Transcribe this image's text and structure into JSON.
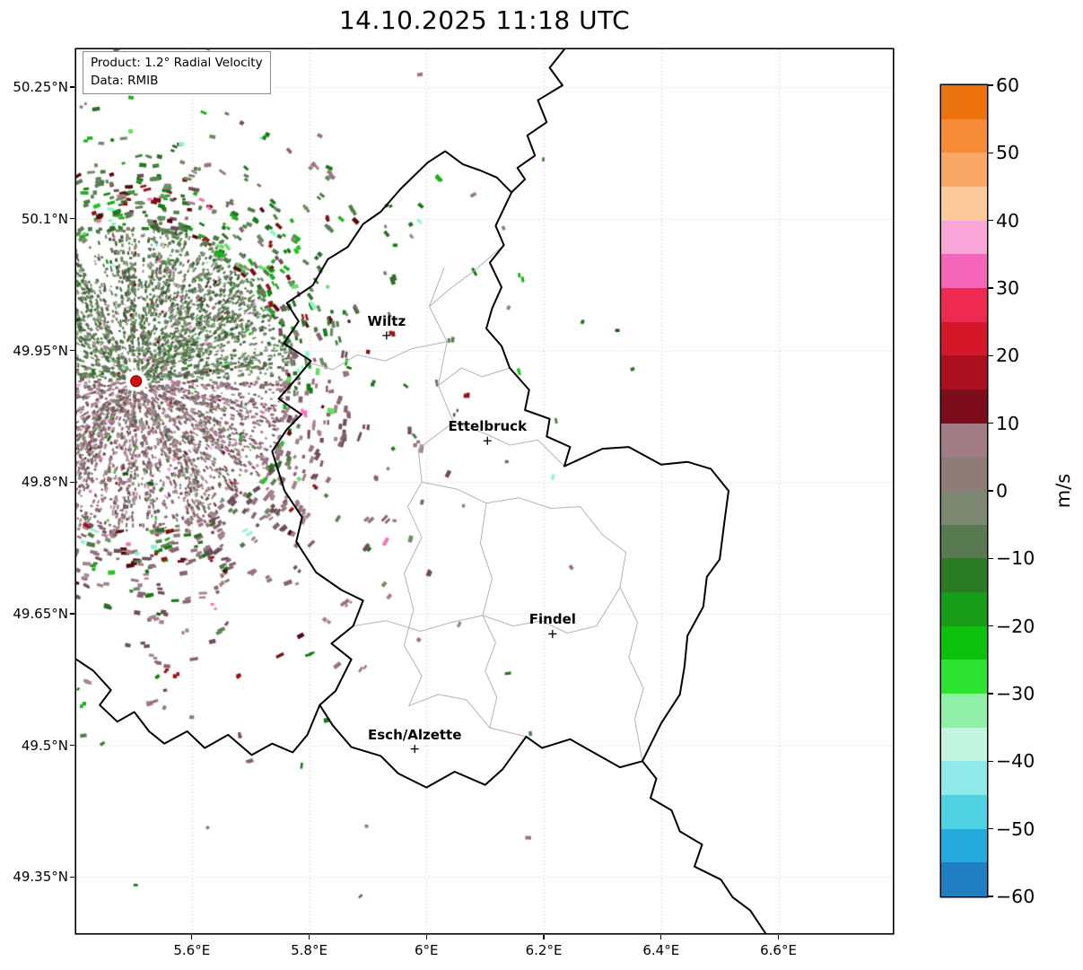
{
  "title": "14.10.2025 11:18 UTC",
  "legend": {
    "product": "Product: 1.2° Radial Velocity",
    "source": "Data: RMIB"
  },
  "axes": {
    "lon_min": 5.403,
    "lon_max": 6.795,
    "lat_min": 49.286,
    "lat_max": 50.293,
    "x_ticks": [
      {
        "value": 5.6,
        "label": "5.6°E"
      },
      {
        "value": 5.8,
        "label": "5.8°E"
      },
      {
        "value": 6.0,
        "label": "6°E"
      },
      {
        "value": 6.2,
        "label": "6.2°E"
      },
      {
        "value": 6.4,
        "label": "6.4°E"
      },
      {
        "value": 6.6,
        "label": "6.6°E"
      }
    ],
    "y_ticks": [
      {
        "value": 50.25,
        "label": "50.25°N"
      },
      {
        "value": 50.1,
        "label": "50.1°N"
      },
      {
        "value": 49.95,
        "label": "49.95°N"
      },
      {
        "value": 49.8,
        "label": "49.8°N"
      },
      {
        "value": 49.65,
        "label": "49.65°N"
      },
      {
        "value": 49.5,
        "label": "49.5°N"
      },
      {
        "value": 49.35,
        "label": "49.35°N"
      }
    ]
  },
  "colorbar": {
    "label": "m/s",
    "vmin": -60,
    "vmax": 60,
    "ticks": [
      {
        "value": 60,
        "label": "60"
      },
      {
        "value": 50,
        "label": "50"
      },
      {
        "value": 40,
        "label": "40"
      },
      {
        "value": 30,
        "label": "30"
      },
      {
        "value": 20,
        "label": "20"
      },
      {
        "value": 10,
        "label": "10"
      },
      {
        "value": 0,
        "label": "0"
      },
      {
        "value": -10,
        "label": "−10"
      },
      {
        "value": -20,
        "label": "−20"
      },
      {
        "value": -30,
        "label": "−30"
      },
      {
        "value": -40,
        "label": "−40"
      },
      {
        "value": -50,
        "label": "−50"
      },
      {
        "value": -60,
        "label": "−60"
      }
    ],
    "bands": [
      {
        "from": 60,
        "to": 55,
        "color": "#ed730f"
      },
      {
        "from": 55,
        "to": 50,
        "color": "#f68b38"
      },
      {
        "from": 50,
        "to": 45,
        "color": "#f9a868"
      },
      {
        "from": 45,
        "to": 40,
        "color": "#fcc99d"
      },
      {
        "from": 40,
        "to": 35,
        "color": "#f9a6d8"
      },
      {
        "from": 35,
        "to": 30,
        "color": "#f566ba"
      },
      {
        "from": 30,
        "to": 25,
        "color": "#ee2a50"
      },
      {
        "from": 25,
        "to": 20,
        "color": "#d4182a"
      },
      {
        "from": 20,
        "to": 15,
        "color": "#aa101f"
      },
      {
        "from": 15,
        "to": 10,
        "color": "#7e0d1b"
      },
      {
        "from": 10,
        "to": 5,
        "color": "#a17b85"
      },
      {
        "from": 5,
        "to": 0,
        "color": "#8e7a77"
      },
      {
        "from": 0,
        "to": -5,
        "color": "#7c8871"
      },
      {
        "from": -5,
        "to": -10,
        "color": "#597a50"
      },
      {
        "from": -10,
        "to": -15,
        "color": "#2a7a26"
      },
      {
        "from": -15,
        "to": -20,
        "color": "#169c16"
      },
      {
        "from": -20,
        "to": -25,
        "color": "#0cc20c"
      },
      {
        "from": -25,
        "to": -30,
        "color": "#2ee232"
      },
      {
        "from": -30,
        "to": -35,
        "color": "#90f0a8"
      },
      {
        "from": -35,
        "to": -40,
        "color": "#c4f4e2"
      },
      {
        "from": -40,
        "to": -45,
        "color": "#8fe8ea"
      },
      {
        "from": -45,
        "to": -50,
        "color": "#4fd3e3"
      },
      {
        "from": -50,
        "to": -55,
        "color": "#24aadc"
      },
      {
        "from": -55,
        "to": -60,
        "color": "#1f7fc2"
      }
    ]
  },
  "cities": [
    {
      "name": "Wiltz",
      "lon": 5.932,
      "lat": 49.967
    },
    {
      "name": "Ettelbruck",
      "lon": 6.104,
      "lat": 49.847
    },
    {
      "name": "Findel",
      "lon": 6.215,
      "lat": 49.627
    },
    {
      "name": "Esch/Alzette",
      "lon": 5.98,
      "lat": 49.496
    }
  ],
  "radar": {
    "lon": 5.505,
    "lat": 49.915,
    "color": "#d21010",
    "edge": "#8c0000"
  },
  "map": {
    "grid_color": "#c4c4c4",
    "country_color": "#000000",
    "canton_color": "#b3b3b3",
    "country_borders": [
      [
        [
          6.235,
          50.293
        ],
        [
          6.21,
          50.272
        ],
        [
          6.232,
          50.252
        ],
        [
          6.19,
          50.235
        ],
        [
          6.205,
          50.21
        ],
        [
          6.172,
          50.195
        ],
        [
          6.185,
          50.172
        ],
        [
          6.155,
          50.158
        ],
        [
          6.168,
          50.145
        ],
        [
          6.145,
          50.13
        ]
      ],
      [
        [
          6.145,
          50.13
        ],
        [
          6.118,
          50.092
        ],
        [
          6.132,
          50.07
        ],
        [
          6.108,
          50.05
        ],
        [
          6.128,
          50.022
        ],
        [
          6.112,
          49.998
        ],
        [
          6.102,
          49.975
        ],
        [
          6.128,
          49.955
        ],
        [
          6.142,
          49.93
        ],
        [
          6.175,
          49.905
        ],
        [
          6.168,
          49.882
        ],
        [
          6.21,
          49.872
        ],
        [
          6.205,
          49.852
        ],
        [
          6.245,
          49.84
        ],
        [
          6.235,
          49.818
        ],
        [
          6.3,
          49.838
        ],
        [
          6.345,
          49.84
        ],
        [
          6.4,
          49.82
        ],
        [
          6.445,
          49.823
        ],
        [
          6.485,
          49.815
        ],
        [
          6.515,
          49.79
        ],
        [
          6.508,
          49.755
        ],
        [
          6.5,
          49.712
        ],
        [
          6.478,
          49.692
        ],
        [
          6.472,
          49.658
        ],
        [
          6.445,
          49.625
        ],
        [
          6.44,
          49.59
        ],
        [
          6.432,
          49.558
        ],
        [
          6.4,
          49.525
        ],
        [
          6.368,
          49.482
        ],
        [
          6.33,
          49.475
        ],
        [
          6.29,
          49.49
        ],
        [
          6.245,
          49.507
        ],
        [
          6.197,
          49.497
        ],
        [
          6.17,
          49.51
        ],
        [
          6.13,
          49.473
        ],
        [
          6.1,
          49.455
        ],
        [
          6.048,
          49.47
        ],
        [
          6.0,
          49.452
        ],
        [
          5.952,
          49.468
        ],
        [
          5.922,
          49.488
        ],
        [
          5.872,
          49.498
        ],
        [
          5.84,
          49.523
        ],
        [
          5.818,
          49.546
        ],
        [
          5.845,
          49.562
        ],
        [
          5.872,
          49.598
        ],
        [
          5.838,
          49.616
        ],
        [
          5.875,
          49.636
        ],
        [
          5.892,
          49.665
        ],
        [
          5.855,
          49.677
        ],
        [
          5.812,
          49.697
        ],
        [
          5.778,
          49.732
        ],
        [
          5.788,
          49.76
        ],
        [
          5.758,
          49.79
        ],
        [
          5.737,
          49.835
        ],
        [
          5.762,
          49.86
        ],
        [
          5.787,
          49.877
        ],
        [
          5.748,
          49.895
        ],
        [
          5.777,
          49.917
        ],
        [
          5.803,
          49.938
        ],
        [
          5.757,
          49.958
        ],
        [
          5.782,
          49.983
        ],
        [
          5.762,
          50.004
        ],
        [
          5.806,
          50.024
        ],
        [
          5.832,
          50.054
        ],
        [
          5.866,
          50.068
        ],
        [
          5.892,
          50.094
        ],
        [
          5.922,
          50.108
        ],
        [
          5.956,
          50.134
        ],
        [
          6.002,
          50.164
        ],
        [
          6.032,
          50.177
        ],
        [
          6.062,
          50.162
        ],
        [
          6.092,
          50.155
        ],
        [
          6.12,
          50.147
        ],
        [
          6.145,
          50.13
        ]
      ],
      [
        [
          5.403,
          49.598
        ],
        [
          5.432,
          49.585
        ],
        [
          5.462,
          49.563
        ],
        [
          5.443,
          49.546
        ],
        [
          5.473,
          49.527
        ],
        [
          5.502,
          49.538
        ],
        [
          5.527,
          49.516
        ],
        [
          5.553,
          49.502
        ],
        [
          5.592,
          49.516
        ],
        [
          5.622,
          49.497
        ],
        [
          5.662,
          49.512
        ],
        [
          5.702,
          49.489
        ],
        [
          5.737,
          49.502
        ],
        [
          5.772,
          49.492
        ],
        [
          5.797,
          49.512
        ],
        [
          5.818,
          49.546
        ]
      ],
      [
        [
          6.368,
          49.482
        ],
        [
          6.392,
          49.462
        ],
        [
          6.382,
          49.44
        ],
        [
          6.418,
          49.426
        ],
        [
          6.432,
          49.402
        ],
        [
          6.47,
          49.387
        ],
        [
          6.457,
          49.362
        ],
        [
          6.502,
          49.347
        ],
        [
          6.522,
          49.327
        ],
        [
          6.552,
          49.312
        ],
        [
          6.578,
          49.286
        ]
      ]
    ],
    "canton_borders": [
      [
        [
          6.03,
          50.044
        ],
        [
          6.005,
          50.0
        ],
        [
          6.035,
          49.96
        ],
        [
          6.02,
          49.91
        ],
        [
          6.046,
          49.868
        ],
        [
          5.986,
          49.838
        ],
        [
          5.992,
          49.8
        ],
        [
          5.968,
          49.772
        ],
        [
          5.992,
          49.737
        ],
        [
          5.962,
          49.696
        ],
        [
          5.978,
          49.655
        ],
        [
          5.962,
          49.614
        ],
        [
          5.992,
          49.579
        ],
        [
          5.97,
          49.545
        ]
      ],
      [
        [
          6.035,
          49.96
        ],
        [
          5.975,
          49.952
        ],
        [
          5.93,
          49.938
        ],
        [
          5.882,
          49.945
        ],
        [
          5.84,
          49.928
        ],
        [
          5.8,
          49.936
        ]
      ],
      [
        [
          6.046,
          49.868
        ],
        [
          6.098,
          49.856
        ],
        [
          6.142,
          49.842
        ],
        [
          6.19,
          49.848
        ],
        [
          6.235,
          49.818
        ]
      ],
      [
        [
          5.992,
          49.8
        ],
        [
          6.052,
          49.792
        ],
        [
          6.102,
          49.776
        ],
        [
          6.158,
          49.782
        ],
        [
          6.212,
          49.77
        ],
        [
          6.262,
          49.772
        ],
        [
          6.3,
          49.74
        ],
        [
          6.34,
          49.72
        ],
        [
          6.33,
          49.68
        ],
        [
          6.36,
          49.64
        ],
        [
          6.345,
          49.6
        ],
        [
          6.37,
          49.565
        ],
        [
          6.355,
          49.53
        ],
        [
          6.368,
          49.482
        ]
      ],
      [
        [
          6.102,
          49.776
        ],
        [
          6.092,
          49.73
        ],
        [
          6.112,
          49.69
        ],
        [
          6.096,
          49.648
        ],
        [
          6.118,
          49.617
        ],
        [
          6.1,
          49.585
        ],
        [
          6.12,
          49.555
        ],
        [
          6.108,
          49.52
        ],
        [
          6.17,
          49.51
        ]
      ],
      [
        [
          5.875,
          49.636
        ],
        [
          5.932,
          49.642
        ],
        [
          5.99,
          49.63
        ],
        [
          6.042,
          49.64
        ],
        [
          6.096,
          49.648
        ],
        [
          6.148,
          49.636
        ],
        [
          6.196,
          49.642
        ],
        [
          6.24,
          49.628
        ],
        [
          6.29,
          49.636
        ],
        [
          6.33,
          49.68
        ]
      ],
      [
        [
          5.97,
          49.545
        ],
        [
          6.02,
          49.558
        ],
        [
          6.068,
          49.552
        ],
        [
          6.108,
          49.52
        ]
      ],
      [
        [
          6.142,
          49.93
        ],
        [
          6.095,
          49.92
        ],
        [
          6.06,
          49.93
        ],
        [
          6.02,
          49.91
        ]
      ],
      [
        [
          6.132,
          50.07
        ],
        [
          6.08,
          50.04
        ],
        [
          6.04,
          50.02
        ],
        [
          6.005,
          50.0
        ]
      ]
    ]
  },
  "speckle": {
    "seed": 20251014,
    "dense_count": 8200,
    "outer_count": 1550,
    "scatter_count": 42,
    "dense_green": [
      "#5e7a56",
      "#6c8a62",
      "#54704c",
      "#78936e",
      "#4a6644",
      "#83a078",
      "#3f5c3a"
    ],
    "dense_mauve": [
      "#997681",
      "#8a6873",
      "#a5858e",
      "#7e5d68",
      "#b0949b",
      "#715059"
    ],
    "accent": [
      "#7a0e13",
      "#9c151c",
      "#5e0a10",
      "#12a312",
      "#22c522",
      "#ff6eb4",
      "#8ef5c8",
      "#ff9ad5"
    ],
    "outer_green": [
      "#2f6b2a",
      "#4a7d44",
      "#177a17",
      "#5d8056",
      "#6f8a66",
      "#1fae1f"
    ],
    "outer_mauve": [
      "#97747e",
      "#86646e",
      "#a4838c",
      "#6f4e58"
    ],
    "outer_red": [
      "#7c1014",
      "#981319",
      "#560a0e"
    ],
    "outer_bright": [
      "#21c521",
      "#66dd66",
      "#8ef5c8",
      "#ff6eb4"
    ],
    "scatter": [
      "#2f6b2a",
      "#177a17",
      "#4a7d44",
      "#97747e",
      "#6f8a66",
      "#0b5c0b"
    ]
  }
}
